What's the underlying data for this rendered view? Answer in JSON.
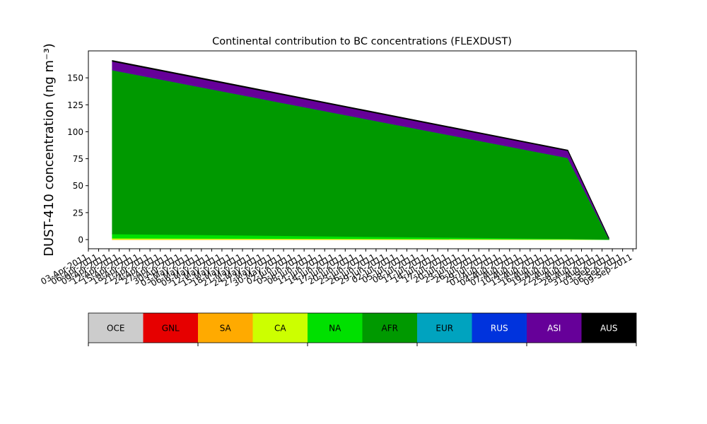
{
  "chart_data": {
    "type": "stacked_area",
    "title": "Continental contribution to BC concentrations (FLEXDUST)",
    "ylabel": "DUST-410 concentration (ng m⁻³)",
    "x": [
      "2011-04-10",
      "2011-08-21",
      "2011-09-02"
    ],
    "series": [
      {
        "name": "OCE",
        "color": "#cccccc",
        "values": [
          0,
          0,
          0
        ]
      },
      {
        "name": "GNL",
        "color": "#e60000",
        "values": [
          0,
          0,
          0
        ]
      },
      {
        "name": "SA",
        "color": "#ffaa00",
        "values": [
          0.3,
          0.1,
          0
        ]
      },
      {
        "name": "CA",
        "color": "#ccff00",
        "values": [
          1,
          0.3,
          0.05
        ]
      },
      {
        "name": "NA",
        "color": "#00e000",
        "values": [
          4,
          0.5,
          0.1
        ]
      },
      {
        "name": "AFR",
        "color": "#009900",
        "values": [
          152,
          75,
          0.8
        ]
      },
      {
        "name": "EUR",
        "color": "#00a3bf",
        "values": [
          0,
          0,
          0
        ]
      },
      {
        "name": "RUS",
        "color": "#0033dd",
        "values": [
          0,
          0,
          0
        ]
      },
      {
        "name": "ASI",
        "color": "#660099",
        "values": [
          8,
          6.5,
          0.3
        ]
      },
      {
        "name": "AUS",
        "color": "#000000",
        "values": [
          0.8,
          0.6,
          0.2
        ]
      }
    ],
    "xlim": [
      "2011-04-03",
      "2011-09-10"
    ],
    "xticks": [
      {
        "value": "2011-04-03",
        "label": "03-Apr-2011"
      },
      {
        "value": "2011-04-06",
        "label": "06-Apr-2011"
      },
      {
        "value": "2011-04-09",
        "label": "09-Apr-2011"
      },
      {
        "value": "2011-04-12",
        "label": "12-Apr-2011"
      },
      {
        "value": "2011-04-15",
        "label": "15-Apr-2011"
      },
      {
        "value": "2011-04-18",
        "label": "18-Apr-2011"
      },
      {
        "value": "2011-04-21",
        "label": "21-Apr-2011"
      },
      {
        "value": "2011-04-24",
        "label": "24-Apr-2011"
      },
      {
        "value": "2011-04-27",
        "label": "27-Apr-2011"
      },
      {
        "value": "2011-04-30",
        "label": "30-Apr-2011"
      },
      {
        "value": "2011-05-03",
        "label": "03-May-2011"
      },
      {
        "value": "2011-05-06",
        "label": "06-May-2011"
      },
      {
        "value": "2011-05-09",
        "label": "09-May-2011"
      },
      {
        "value": "2011-05-12",
        "label": "12-May-2011"
      },
      {
        "value": "2011-05-15",
        "label": "15-May-2011"
      },
      {
        "value": "2011-05-18",
        "label": "18-May-2011"
      },
      {
        "value": "2011-05-21",
        "label": "21-May-2011"
      },
      {
        "value": "2011-05-24",
        "label": "24-May-2011"
      },
      {
        "value": "2011-05-27",
        "label": "27-May-2011"
      },
      {
        "value": "2011-05-30",
        "label": "30-May-2011"
      },
      {
        "value": "2011-06-02",
        "label": "02-Jun-2011"
      },
      {
        "value": "2011-06-05",
        "label": "05-Jun-2011"
      },
      {
        "value": "2011-06-08",
        "label": "08-Jun-2011"
      },
      {
        "value": "2011-06-11",
        "label": "11-Jun-2011"
      },
      {
        "value": "2011-06-14",
        "label": "14-Jun-2011"
      },
      {
        "value": "2011-06-17",
        "label": "17-Jun-2011"
      },
      {
        "value": "2011-06-20",
        "label": "20-Jun-2011"
      },
      {
        "value": "2011-06-23",
        "label": "23-Jun-2011"
      },
      {
        "value": "2011-06-26",
        "label": "26-Jun-2011"
      },
      {
        "value": "2011-06-29",
        "label": "29-Jun-2011"
      },
      {
        "value": "2011-07-02",
        "label": "02-Jul-2011"
      },
      {
        "value": "2011-07-05",
        "label": "05-Jul-2011"
      },
      {
        "value": "2011-07-08",
        "label": "08-Jul-2011"
      },
      {
        "value": "2011-07-11",
        "label": "11-Jul-2011"
      },
      {
        "value": "2011-07-14",
        "label": "14-Jul-2011"
      },
      {
        "value": "2011-07-17",
        "label": "17-Jul-2011"
      },
      {
        "value": "2011-07-20",
        "label": "20-Jul-2011"
      },
      {
        "value": "2011-07-23",
        "label": "23-Jul-2011"
      },
      {
        "value": "2011-07-26",
        "label": "26-Jul-2011"
      },
      {
        "value": "2011-07-29",
        "label": "29-Jul-2011"
      },
      {
        "value": "2011-08-01",
        "label": "01-Aug-2011"
      },
      {
        "value": "2011-08-04",
        "label": "04-Aug-2011"
      },
      {
        "value": "2011-08-07",
        "label": "07-Aug-2011"
      },
      {
        "value": "2011-08-10",
        "label": "10-Aug-2011"
      },
      {
        "value": "2011-08-13",
        "label": "13-Aug-2011"
      },
      {
        "value": "2011-08-16",
        "label": "16-Aug-2011"
      },
      {
        "value": "2011-08-19",
        "label": "19-Aug-2011"
      },
      {
        "value": "2011-08-22",
        "label": "22-Aug-2011"
      },
      {
        "value": "2011-08-25",
        "label": "25-Aug-2011"
      },
      {
        "value": "2011-08-28",
        "label": "28-Aug-2011"
      },
      {
        "value": "2011-08-31",
        "label": "31-Aug-2011"
      },
      {
        "value": "2011-09-03",
        "label": "03-Sep-2011"
      },
      {
        "value": "2011-09-06",
        "label": "06-Sep-2011"
      },
      {
        "value": "2011-09-09",
        "label": "09-Sep-2011"
      }
    ],
    "ylim": [
      -8.5,
      175
    ],
    "yticks": [
      0,
      25,
      50,
      75,
      100,
      125,
      150
    ]
  }
}
